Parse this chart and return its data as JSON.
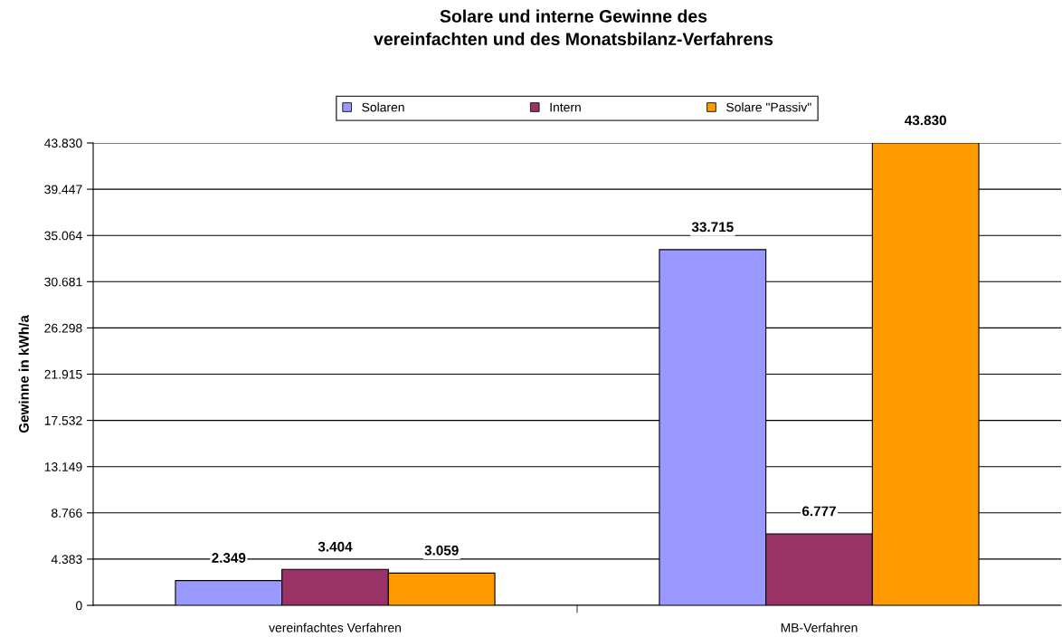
{
  "chart_data": {
    "type": "bar",
    "title": "Solare und interne Gewinne des\nvereinfachten und des Monatsbilanz-Verfahrens",
    "ylabel": "Gewinne in kWh/a",
    "categories": [
      "vereinfachtes Verfahren",
      "MB-Verfahren"
    ],
    "series": [
      {
        "name": "Solaren",
        "color": "#9999ff",
        "values": [
          2349,
          33715
        ],
        "value_labels": [
          "2.349",
          "33.715"
        ]
      },
      {
        "name": "Intern",
        "color": "#993366",
        "values": [
          3404,
          6777
        ],
        "value_labels": [
          "3.404",
          "6.777"
        ]
      },
      {
        "name": "Solare \"Passiv\"",
        "color": "#ff9900",
        "values": [
          3059,
          43830
        ],
        "value_labels": [
          "3.059",
          "43.830"
        ]
      }
    ],
    "ylim": [
      0,
      43830
    ],
    "yticks": [
      0,
      {
        "value": 4383,
        "label": "4.383"
      },
      {
        "value": 8766,
        "label": "8.766"
      },
      {
        "value": 13149,
        "label": "13.149"
      },
      {
        "value": 17532,
        "label": "17.532"
      },
      {
        "value": 21915,
        "label": "21.915"
      },
      {
        "value": 26298,
        "label": "26.298"
      },
      {
        "value": 30681,
        "label": "30.681"
      },
      {
        "value": 35064,
        "label": "35.064"
      },
      {
        "value": 39447,
        "label": "39.447"
      },
      {
        "value": 43830,
        "label": "43.830"
      }
    ],
    "grid": "y",
    "legend": "top"
  }
}
